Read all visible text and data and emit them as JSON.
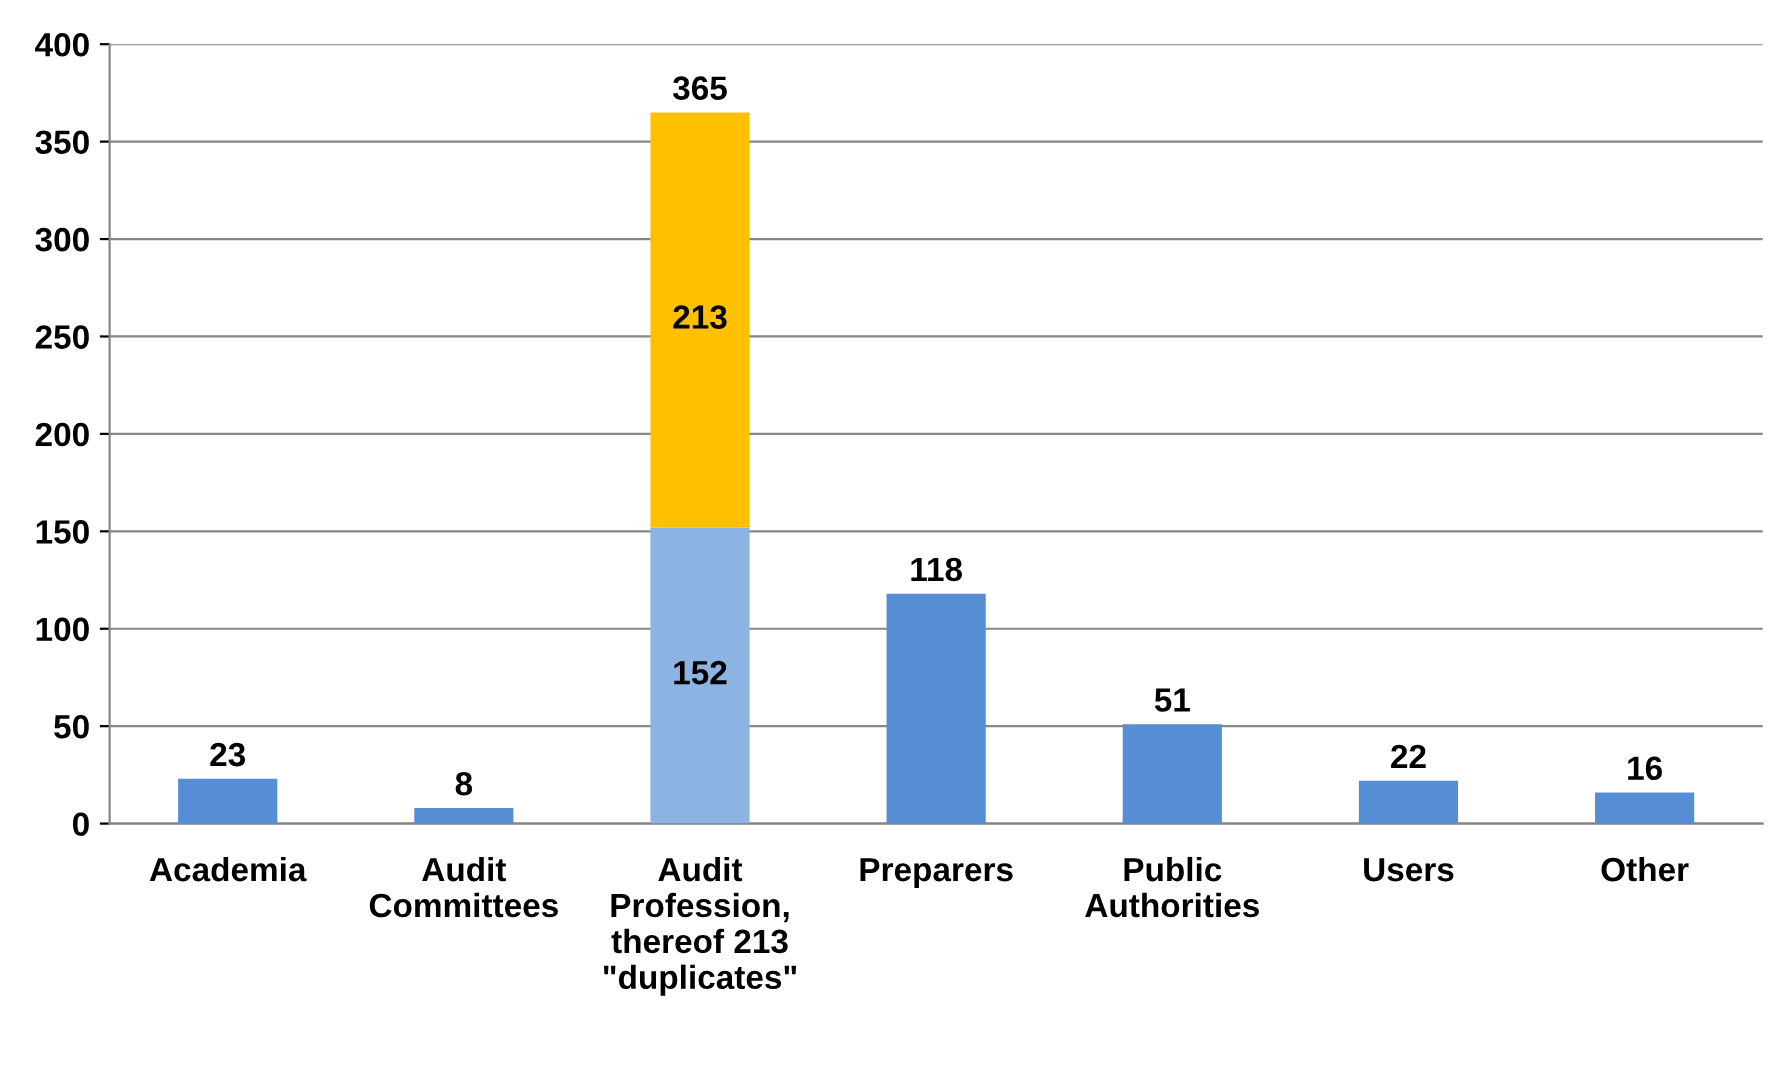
{
  "chart_data": {
    "type": "bar",
    "stacked": true,
    "categories": [
      "Academia",
      "Audit\nCommittees",
      "Audit\nProfession,\nthereof 213\n\"duplicates\"",
      "Preparers",
      "Public\nAuthorities",
      "Users",
      "Other"
    ],
    "series": [
      {
        "colors": [
          "#558ed5",
          "#558ed5",
          "#8db3e2",
          "#558ed5",
          "#558ed5",
          "#558ed5",
          "#558ed5"
        ],
        "values": [
          23,
          8,
          152,
          118,
          51,
          22,
          16
        ]
      },
      {
        "color": "#ffc000",
        "values": [
          null,
          null,
          213,
          null,
          null,
          null,
          null
        ]
      }
    ],
    "data_labels": true,
    "totals": [
      null,
      null,
      "365",
      null,
      null,
      null,
      null
    ],
    "ylim": [
      0,
      400
    ],
    "yticks": [
      0,
      50,
      100,
      150,
      200,
      250,
      300,
      350,
      400
    ],
    "grid": "y",
    "legend": false
  }
}
